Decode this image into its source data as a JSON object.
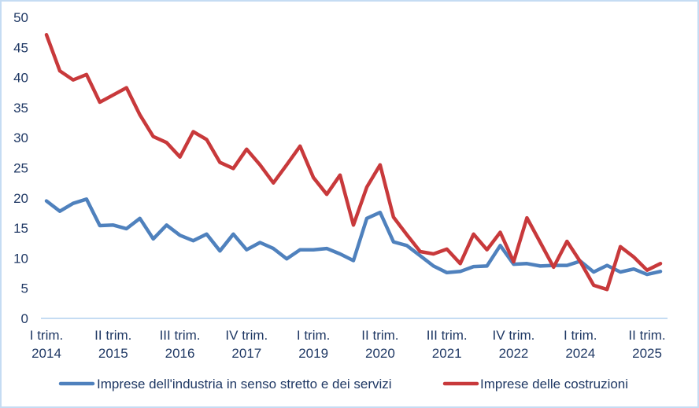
{
  "chart_data": {
    "type": "line",
    "title": "",
    "xlabel": "",
    "ylabel": "",
    "ylim": [
      0,
      50
    ],
    "yticks": [
      0,
      5,
      10,
      15,
      20,
      25,
      30,
      35,
      40,
      45,
      50
    ],
    "grid": false,
    "legend_position": "bottom",
    "x_tick_labels": [
      {
        "index": 0,
        "line1": "I trim.",
        "line2": "2014"
      },
      {
        "index": 5,
        "line1": "II trim.",
        "line2": "2015"
      },
      {
        "index": 10,
        "line1": "III trim.",
        "line2": "2016"
      },
      {
        "index": 15,
        "line1": "IV trim.",
        "line2": "2017"
      },
      {
        "index": 20,
        "line1": "I trim.",
        "line2": "2019"
      },
      {
        "index": 25,
        "line1": "II trim.",
        "line2": "2020"
      },
      {
        "index": 30,
        "line1": "III trim.",
        "line2": "2021"
      },
      {
        "index": 35,
        "line1": "IV trim.",
        "line2": "2022"
      },
      {
        "index": 40,
        "line1": "I trim.",
        "line2": "2024"
      },
      {
        "index": 45,
        "line1": "II trim.",
        "line2": "2025"
      }
    ],
    "n_points": 47,
    "series": [
      {
        "name": "Imprese dell'industria in senso stretto e dei servizi",
        "color": "#4f81bd",
        "values": [
          19.5,
          17.8,
          19.1,
          19.8,
          15.4,
          15.5,
          14.9,
          16.6,
          13.2,
          15.5,
          13.8,
          12.9,
          14.0,
          11.2,
          14.0,
          11.4,
          12.6,
          11.6,
          9.9,
          11.4,
          11.4,
          11.6,
          10.7,
          9.6,
          16.6,
          17.6,
          12.7,
          12.1,
          10.4,
          8.7,
          7.6,
          7.8,
          8.6,
          8.7,
          12.1,
          9.0,
          9.1,
          8.7,
          8.8,
          8.8,
          9.5,
          7.7,
          8.8,
          7.7,
          8.2,
          7.3,
          7.8
        ]
      },
      {
        "name": "Imprese delle costruzioni",
        "color": "#c8393b",
        "values": [
          47.1,
          41.1,
          39.6,
          40.5,
          35.9,
          37.1,
          38.3,
          33.8,
          30.2,
          29.2,
          26.8,
          31.0,
          29.7,
          25.9,
          24.9,
          28.1,
          25.5,
          22.5,
          25.5,
          28.6,
          23.4,
          20.6,
          23.8,
          15.5,
          21.8,
          25.5,
          16.8,
          13.9,
          11.1,
          10.7,
          11.5,
          9.1,
          14.0,
          11.4,
          14.3,
          9.4,
          16.7,
          12.6,
          8.5,
          12.8,
          9.4,
          5.5,
          4.8,
          11.9,
          10.2,
          8.0,
          9.1
        ]
      }
    ]
  }
}
